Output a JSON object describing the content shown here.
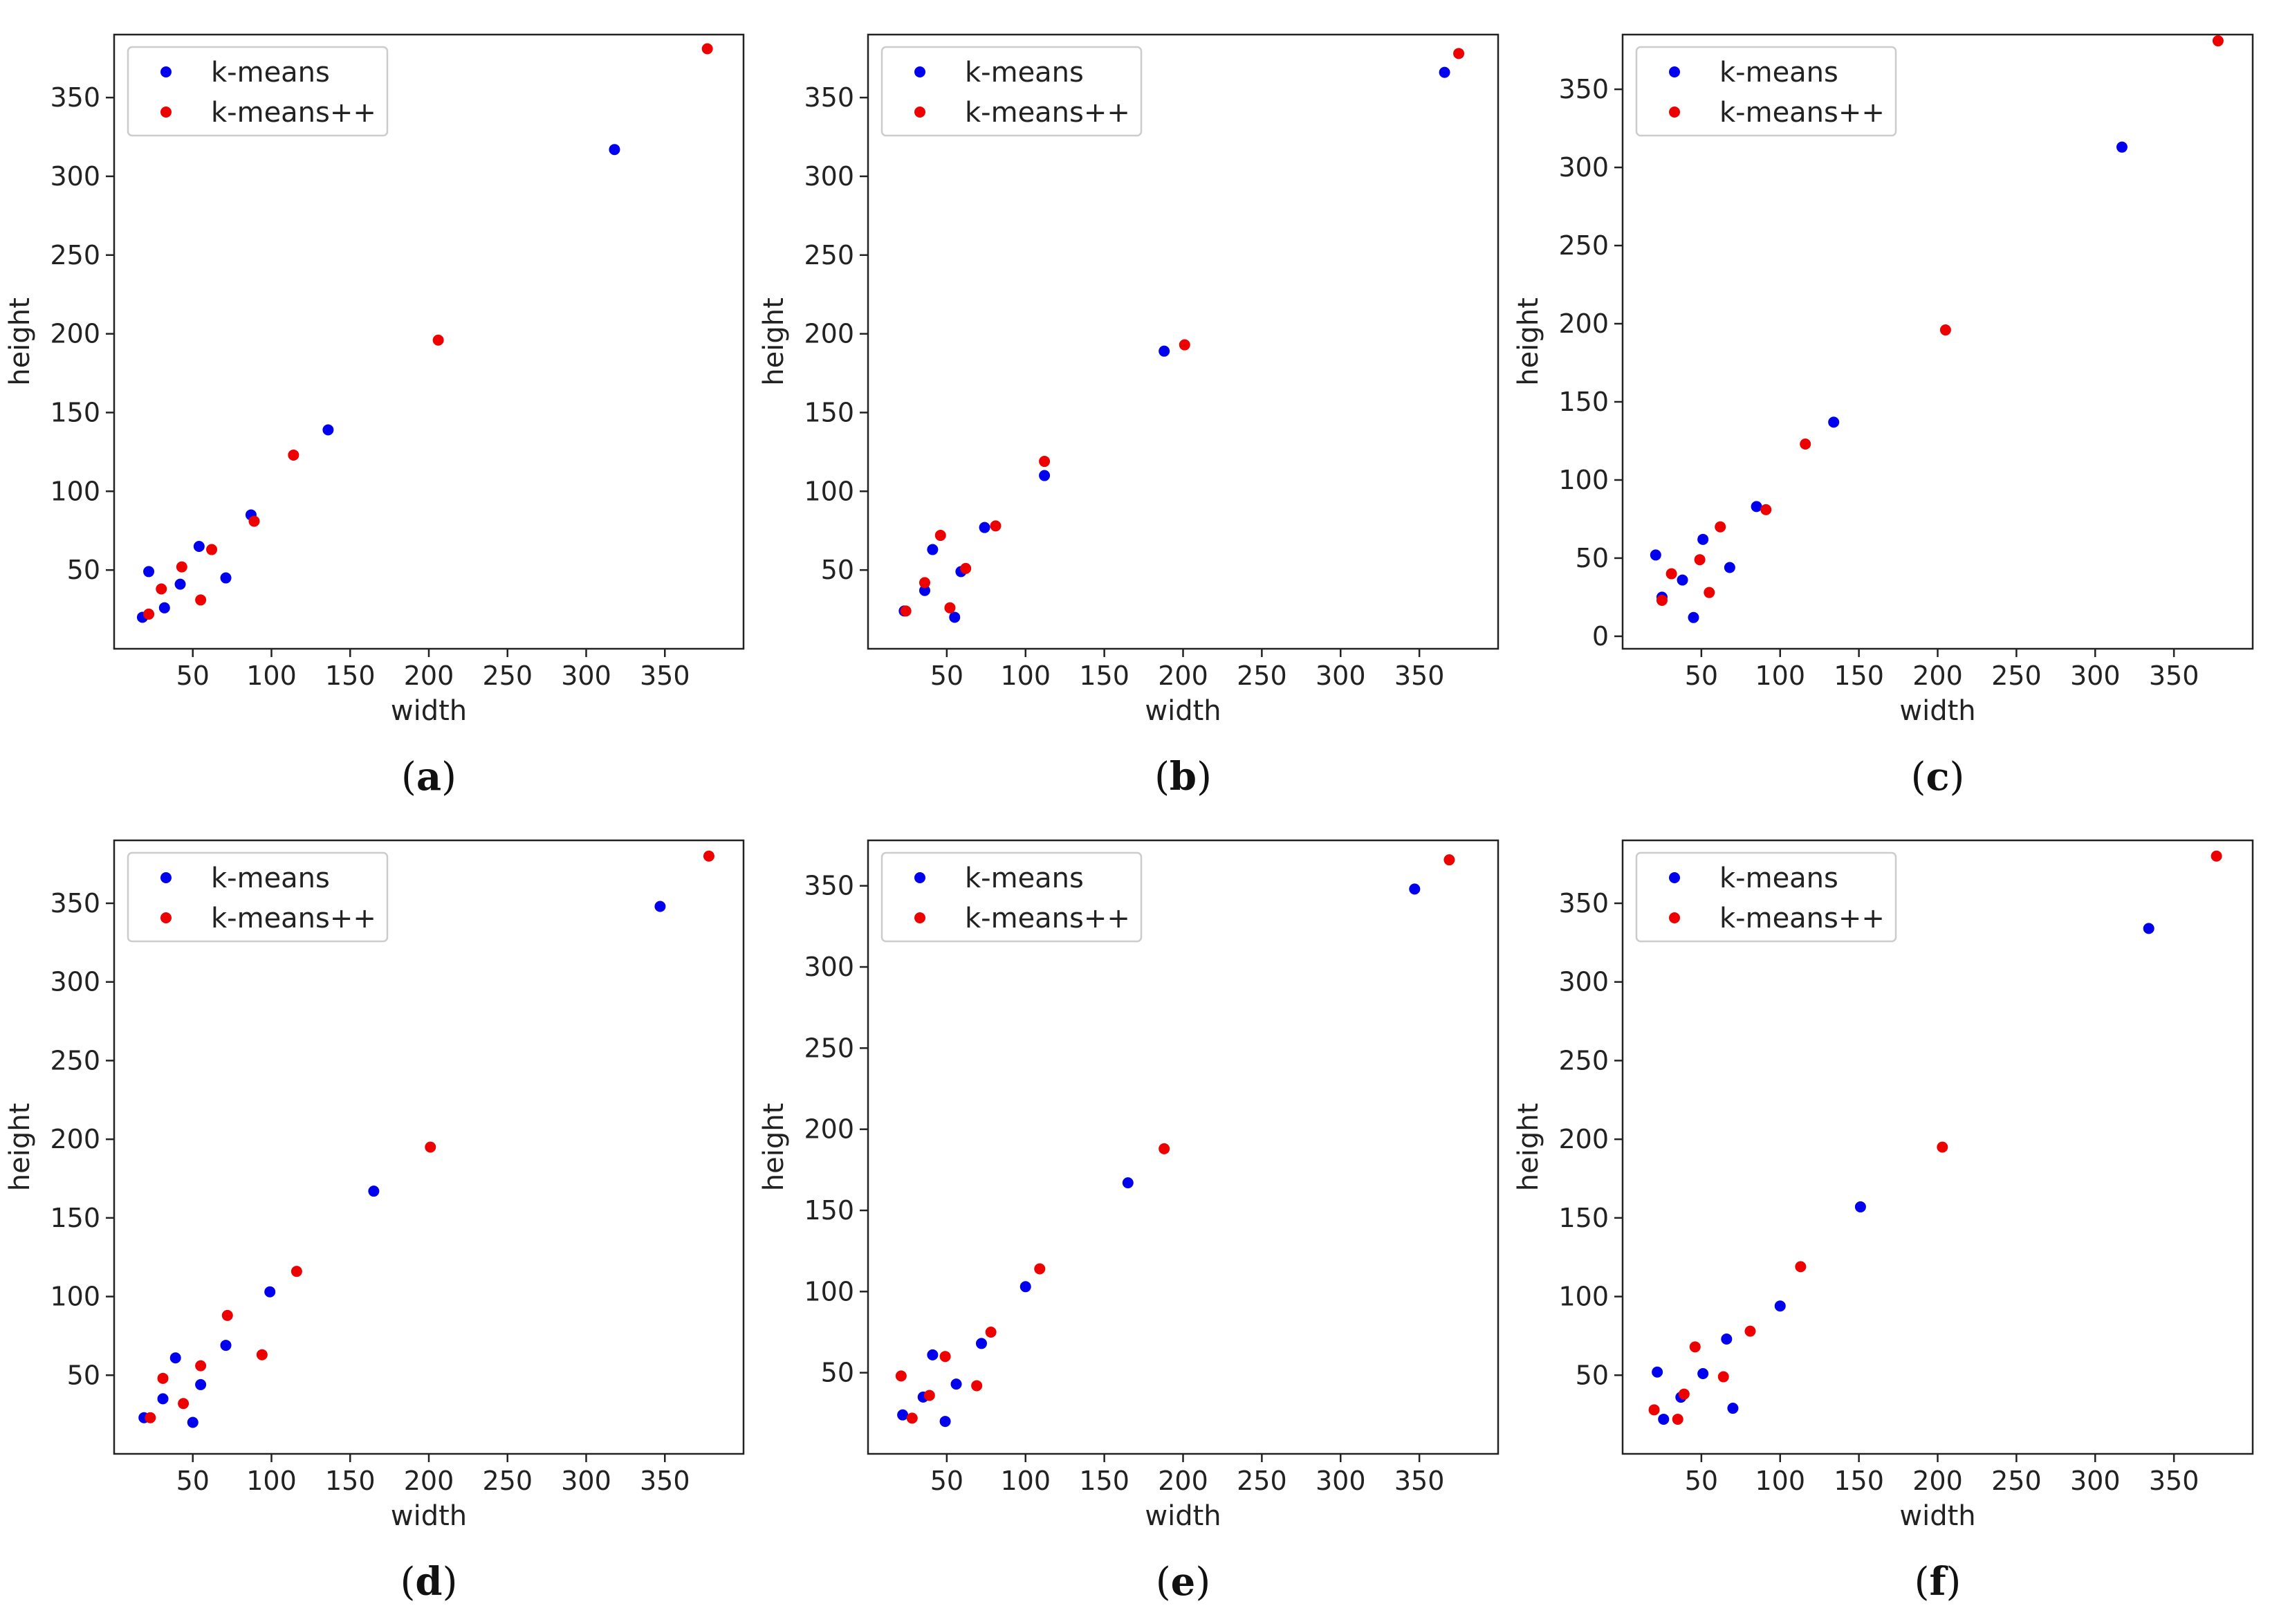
{
  "colors": {
    "kmeans": "#0000ee",
    "kmeanspp": "#ee0000"
  },
  "chart_data": [
    {
      "panel": "(a)",
      "panel_letter": "a",
      "type": "scatter",
      "xlabel": "width",
      "ylabel": "height",
      "xlim": [
        0,
        400
      ],
      "ylim": [
        0,
        390
      ],
      "xticks": [
        50,
        100,
        150,
        200,
        250,
        300,
        350
      ],
      "yticks": [
        50,
        100,
        150,
        200,
        250,
        300,
        350
      ],
      "legend": [
        "k-means",
        "k-means++"
      ],
      "series": [
        {
          "name": "k-means",
          "points": [
            [
              18,
              20
            ],
            [
              22,
              49
            ],
            [
              32,
              26
            ],
            [
              42,
              41
            ],
            [
              54,
              65
            ],
            [
              71,
              45
            ],
            [
              87,
              85
            ],
            [
              136,
              139
            ],
            [
              318,
              317
            ]
          ]
        },
        {
          "name": "k-means++",
          "points": [
            [
              22,
              22
            ],
            [
              30,
              38
            ],
            [
              43,
              52
            ],
            [
              55,
              31
            ],
            [
              62,
              63
            ],
            [
              89,
              81
            ],
            [
              114,
              123
            ],
            [
              206,
              196
            ],
            [
              377,
              381
            ]
          ]
        }
      ]
    },
    {
      "panel": "(b)",
      "panel_letter": "b",
      "type": "scatter",
      "xlabel": "width",
      "ylabel": "height",
      "xlim": [
        0,
        400
      ],
      "ylim": [
        0,
        390
      ],
      "xticks": [
        50,
        100,
        150,
        200,
        250,
        300,
        350
      ],
      "yticks": [
        50,
        100,
        150,
        200,
        250,
        300,
        350
      ],
      "legend": [
        "k-means",
        "k-means++"
      ],
      "series": [
        {
          "name": "k-means",
          "points": [
            [
              23,
              24
            ],
            [
              36,
              37
            ],
            [
              41,
              63
            ],
            [
              55,
              20
            ],
            [
              59,
              49
            ],
            [
              74,
              77
            ],
            [
              112,
              110
            ],
            [
              188,
              189
            ],
            [
              366,
              366
            ]
          ]
        },
        {
          "name": "k-means++",
          "points": [
            [
              24,
              24
            ],
            [
              36,
              42
            ],
            [
              46,
              72
            ],
            [
              52,
              26
            ],
            [
              62,
              51
            ],
            [
              81,
              78
            ],
            [
              112,
              119
            ],
            [
              201,
              193
            ],
            [
              375,
              378
            ]
          ]
        }
      ]
    },
    {
      "panel": "(c)",
      "panel_letter": "c",
      "type": "scatter",
      "xlabel": "width",
      "ylabel": "height",
      "xlim": [
        0,
        400
      ],
      "ylim": [
        -8,
        385
      ],
      "xticks": [
        50,
        100,
        150,
        200,
        250,
        300,
        350
      ],
      "yticks": [
        0,
        50,
        100,
        150,
        200,
        250,
        300,
        350
      ],
      "legend": [
        "k-means",
        "k-means++"
      ],
      "series": [
        {
          "name": "k-means",
          "points": [
            [
              21,
              52
            ],
            [
              25,
              25
            ],
            [
              38,
              36
            ],
            [
              45,
              12
            ],
            [
              51,
              62
            ],
            [
              68,
              44
            ],
            [
              85,
              83
            ],
            [
              134,
              137
            ],
            [
              317,
              313
            ]
          ]
        },
        {
          "name": "k-means++",
          "points": [
            [
              25,
              23
            ],
            [
              31,
              40
            ],
            [
              49,
              49
            ],
            [
              55,
              28
            ],
            [
              62,
              70
            ],
            [
              91,
              81
            ],
            [
              116,
              123
            ],
            [
              205,
              196
            ],
            [
              378,
              381
            ]
          ]
        }
      ]
    },
    {
      "panel": "(d)",
      "panel_letter": "d",
      "type": "scatter",
      "xlabel": "width",
      "ylabel": "height",
      "xlim": [
        0,
        400
      ],
      "ylim": [
        0,
        390
      ],
      "xticks": [
        50,
        100,
        150,
        200,
        250,
        300,
        350
      ],
      "yticks": [
        50,
        100,
        150,
        200,
        250,
        300,
        350
      ],
      "legend": [
        "k-means",
        "k-means++"
      ],
      "series": [
        {
          "name": "k-means",
          "points": [
            [
              19,
              23
            ],
            [
              31,
              35
            ],
            [
              39,
              61
            ],
            [
              50,
              20
            ],
            [
              55,
              44
            ],
            [
              71,
              69
            ],
            [
              99,
              103
            ],
            [
              165,
              167
            ],
            [
              347,
              348
            ]
          ]
        },
        {
          "name": "k-means++",
          "points": [
            [
              23,
              23
            ],
            [
              31,
              48
            ],
            [
              44,
              32
            ],
            [
              55,
              56
            ],
            [
              72,
              88
            ],
            [
              94,
              63
            ],
            [
              116,
              116
            ],
            [
              201,
              195
            ],
            [
              378,
              380
            ]
          ]
        }
      ]
    },
    {
      "panel": "(e)",
      "panel_letter": "e",
      "type": "scatter",
      "xlabel": "width",
      "ylabel": "height",
      "xlim": [
        0,
        400
      ],
      "ylim": [
        0,
        378
      ],
      "xticks": [
        50,
        100,
        150,
        200,
        250,
        300,
        350
      ],
      "yticks": [
        50,
        100,
        150,
        200,
        250,
        300,
        350
      ],
      "legend": [
        "k-means",
        "k-means++"
      ],
      "series": [
        {
          "name": "k-means",
          "points": [
            [
              22,
              24
            ],
            [
              35,
              35
            ],
            [
              41,
              61
            ],
            [
              49,
              20
            ],
            [
              56,
              43
            ],
            [
              72,
              68
            ],
            [
              100,
              103
            ],
            [
              165,
              167
            ],
            [
              347,
              348
            ]
          ]
        },
        {
          "name": "k-means++",
          "points": [
            [
              21,
              48
            ],
            [
              28,
              22
            ],
            [
              39,
              36
            ],
            [
              49,
              60
            ],
            [
              69,
              42
            ],
            [
              78,
              75
            ],
            [
              109,
              114
            ],
            [
              188,
              188
            ],
            [
              369,
              366
            ]
          ]
        }
      ]
    },
    {
      "panel": "(f)",
      "panel_letter": "f",
      "type": "scatter",
      "xlabel": "width",
      "ylabel": "height",
      "xlim": [
        0,
        400
      ],
      "ylim": [
        0,
        390
      ],
      "xticks": [
        50,
        100,
        150,
        200,
        250,
        300,
        350
      ],
      "yticks": [
        50,
        100,
        150,
        200,
        250,
        300,
        350
      ],
      "legend": [
        "k-means",
        "k-means++"
      ],
      "series": [
        {
          "name": "k-means",
          "points": [
            [
              22,
              52
            ],
            [
              26,
              22
            ],
            [
              37,
              36
            ],
            [
              51,
              51
            ],
            [
              66,
              73
            ],
            [
              70,
              29
            ],
            [
              100,
              94
            ],
            [
              151,
              157
            ],
            [
              334,
              334
            ]
          ]
        },
        {
          "name": "k-means++",
          "points": [
            [
              20,
              28
            ],
            [
              35,
              22
            ],
            [
              39,
              38
            ],
            [
              46,
              68
            ],
            [
              64,
              49
            ],
            [
              81,
              78
            ],
            [
              113,
              119
            ],
            [
              203,
              195
            ],
            [
              377,
              380
            ]
          ]
        }
      ]
    }
  ]
}
